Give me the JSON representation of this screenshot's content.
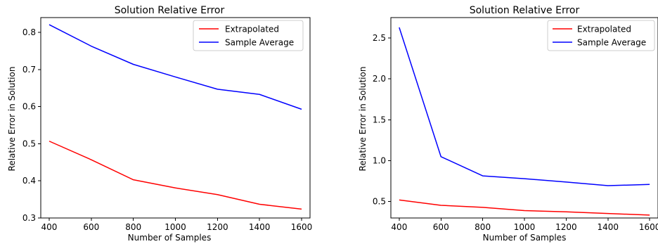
{
  "chart_data": [
    {
      "type": "line",
      "title": "Solution Relative Error",
      "xlabel": "Number of Samples",
      "ylabel": "Relative Error in Solution",
      "x": [
        400,
        600,
        800,
        1000,
        1200,
        1400,
        1600
      ],
      "xlim": [
        360,
        1640
      ],
      "ylim": [
        0.3,
        0.84
      ],
      "xticks": [
        400,
        600,
        800,
        1000,
        1200,
        1400,
        1600
      ],
      "yticks": [
        0.3,
        0.4,
        0.5,
        0.6,
        0.7,
        0.8
      ],
      "yticklabels": [
        "0.3",
        "0.4",
        "0.5",
        "0.6",
        "0.7",
        "0.8"
      ],
      "grid": false,
      "legend_position": "top-right",
      "series": [
        {
          "name": "Extrapolated",
          "color": "#ff0000",
          "values": [
            0.507,
            0.457,
            0.403,
            0.381,
            0.363,
            0.337,
            0.324
          ]
        },
        {
          "name": "Sample Average",
          "color": "#0000ff",
          "values": [
            0.821,
            0.763,
            0.714,
            0.68,
            0.647,
            0.633,
            0.593
          ]
        }
      ]
    },
    {
      "type": "line",
      "title": "Solution Relative Error",
      "xlabel": "Number of Samples",
      "ylabel": "Relative Error in Solution",
      "x": [
        400,
        600,
        800,
        1000,
        1200,
        1400,
        1600
      ],
      "xlim": [
        360,
        1640
      ],
      "ylim": [
        0.3,
        2.75
      ],
      "xticks": [
        400,
        600,
        800,
        1000,
        1200,
        1400,
        1600
      ],
      "yticks": [
        0.5,
        1.0,
        1.5,
        2.0,
        2.5
      ],
      "yticklabels": [
        "0.5",
        "1.0",
        "1.5",
        "2.0",
        "2.5"
      ],
      "grid": false,
      "legend_position": "top-right",
      "series": [
        {
          "name": "Extrapolated",
          "color": "#ff0000",
          "values": [
            0.52,
            0.455,
            0.43,
            0.39,
            0.375,
            0.355,
            0.335
          ]
        },
        {
          "name": "Sample Average",
          "color": "#0000ff",
          "values": [
            2.63,
            1.05,
            0.815,
            0.78,
            0.74,
            0.695,
            0.71
          ]
        }
      ]
    }
  ]
}
